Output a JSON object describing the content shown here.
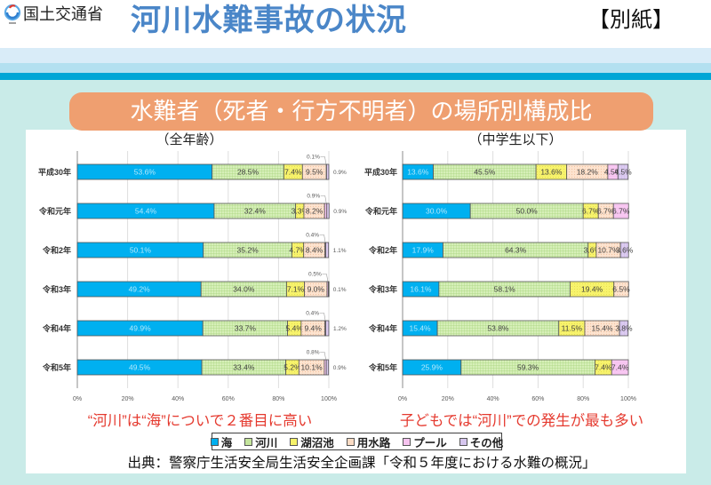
{
  "header": {
    "ministry": "国土交通省",
    "title": "河川水難事故の状況",
    "attachment": "【別紙】"
  },
  "banner": {
    "title": "水難者（死者・行方不明者）の場所別構成比"
  },
  "annotations": {
    "left": "“河川”は“海”についで２番目に高い",
    "right": "子どもでは“河川”での発生が最も多い"
  },
  "legend": [
    {
      "label": "海",
      "color": "#00b0f0"
    },
    {
      "label": "河川",
      "color": "#c4e59c"
    },
    {
      "label": "湖沼池",
      "color": "#f6f26a"
    },
    {
      "label": "用水路",
      "color": "#fbdcc4"
    },
    {
      "label": "プール",
      "color": "#f6c3ef"
    },
    {
      "label": "その他",
      "color": "#d6c6ee"
    }
  ],
  "source": "出典：警察庁生活安全局生活安全企画課「令和５年度における水難の概況」",
  "chart_data": [
    {
      "id": "all-ages",
      "type": "bar",
      "orientation": "horizontal",
      "stacked": "percent",
      "title": "（全年齢）",
      "xlabel": "",
      "ylabel": "",
      "xlim": [
        0,
        100
      ],
      "xticks": [
        0,
        20,
        40,
        60,
        80,
        100
      ],
      "xtick_labels": [
        "0%",
        "20%",
        "40%",
        "60%",
        "80%",
        "100%"
      ],
      "grid": true,
      "legend_position": "bottom",
      "categories": [
        "平成30年",
        "令和元年",
        "令和2年",
        "令和3年",
        "令和4年",
        "令和5年"
      ],
      "series": [
        {
          "name": "海",
          "values": [
            53.6,
            54.4,
            50.1,
            49.2,
            49.9,
            49.5
          ]
        },
        {
          "name": "河川",
          "values": [
            28.5,
            32.4,
            35.2,
            34.0,
            33.7,
            33.4
          ]
        },
        {
          "name": "湖沼池",
          "values": [
            7.4,
            3.3,
            4.7,
            7.1,
            5.4,
            5.2
          ]
        },
        {
          "name": "用水路",
          "values": [
            9.5,
            8.2,
            8.4,
            9.0,
            9.4,
            10.1
          ]
        },
        {
          "name": "プール",
          "values": [
            0.1,
            0.9,
            0.4,
            0.5,
            0.4,
            0.8
          ]
        },
        {
          "name": "その他",
          "values": [
            0.9,
            0.9,
            1.1,
            0.1,
            1.2,
            0.9
          ]
        }
      ]
    },
    {
      "id": "junior-high-and-under",
      "type": "bar",
      "orientation": "horizontal",
      "stacked": "percent",
      "title": "（中学生以下）",
      "xlabel": "",
      "ylabel": "",
      "xlim": [
        0,
        100
      ],
      "xticks": [
        0,
        20,
        40,
        60,
        80,
        100
      ],
      "xtick_labels": [
        "0%",
        "20%",
        "40%",
        "60%",
        "80%",
        "100%"
      ],
      "grid": true,
      "legend_position": "bottom",
      "categories": [
        "平成30年",
        "令和元年",
        "令和2年",
        "令和3年",
        "令和4年",
        "令和5年"
      ],
      "series": [
        {
          "name": "海",
          "values": [
            13.6,
            30.0,
            17.9,
            16.1,
            15.4,
            25.9
          ]
        },
        {
          "name": "河川",
          "values": [
            45.5,
            50.0,
            64.3,
            58.1,
            53.8,
            59.3
          ]
        },
        {
          "name": "湖沼池",
          "values": [
            13.6,
            6.7,
            3.6,
            19.4,
            11.5,
            7.4
          ]
        },
        {
          "name": "用水路",
          "values": [
            18.2,
            6.7,
            10.7,
            6.5,
            15.4,
            0
          ]
        },
        {
          "name": "プール",
          "values": [
            4.5,
            6.7,
            0,
            0,
            0,
            7.4
          ]
        },
        {
          "name": "その他",
          "values": [
            4.5,
            0,
            3.6,
            0,
            3.8,
            0
          ]
        }
      ]
    }
  ]
}
